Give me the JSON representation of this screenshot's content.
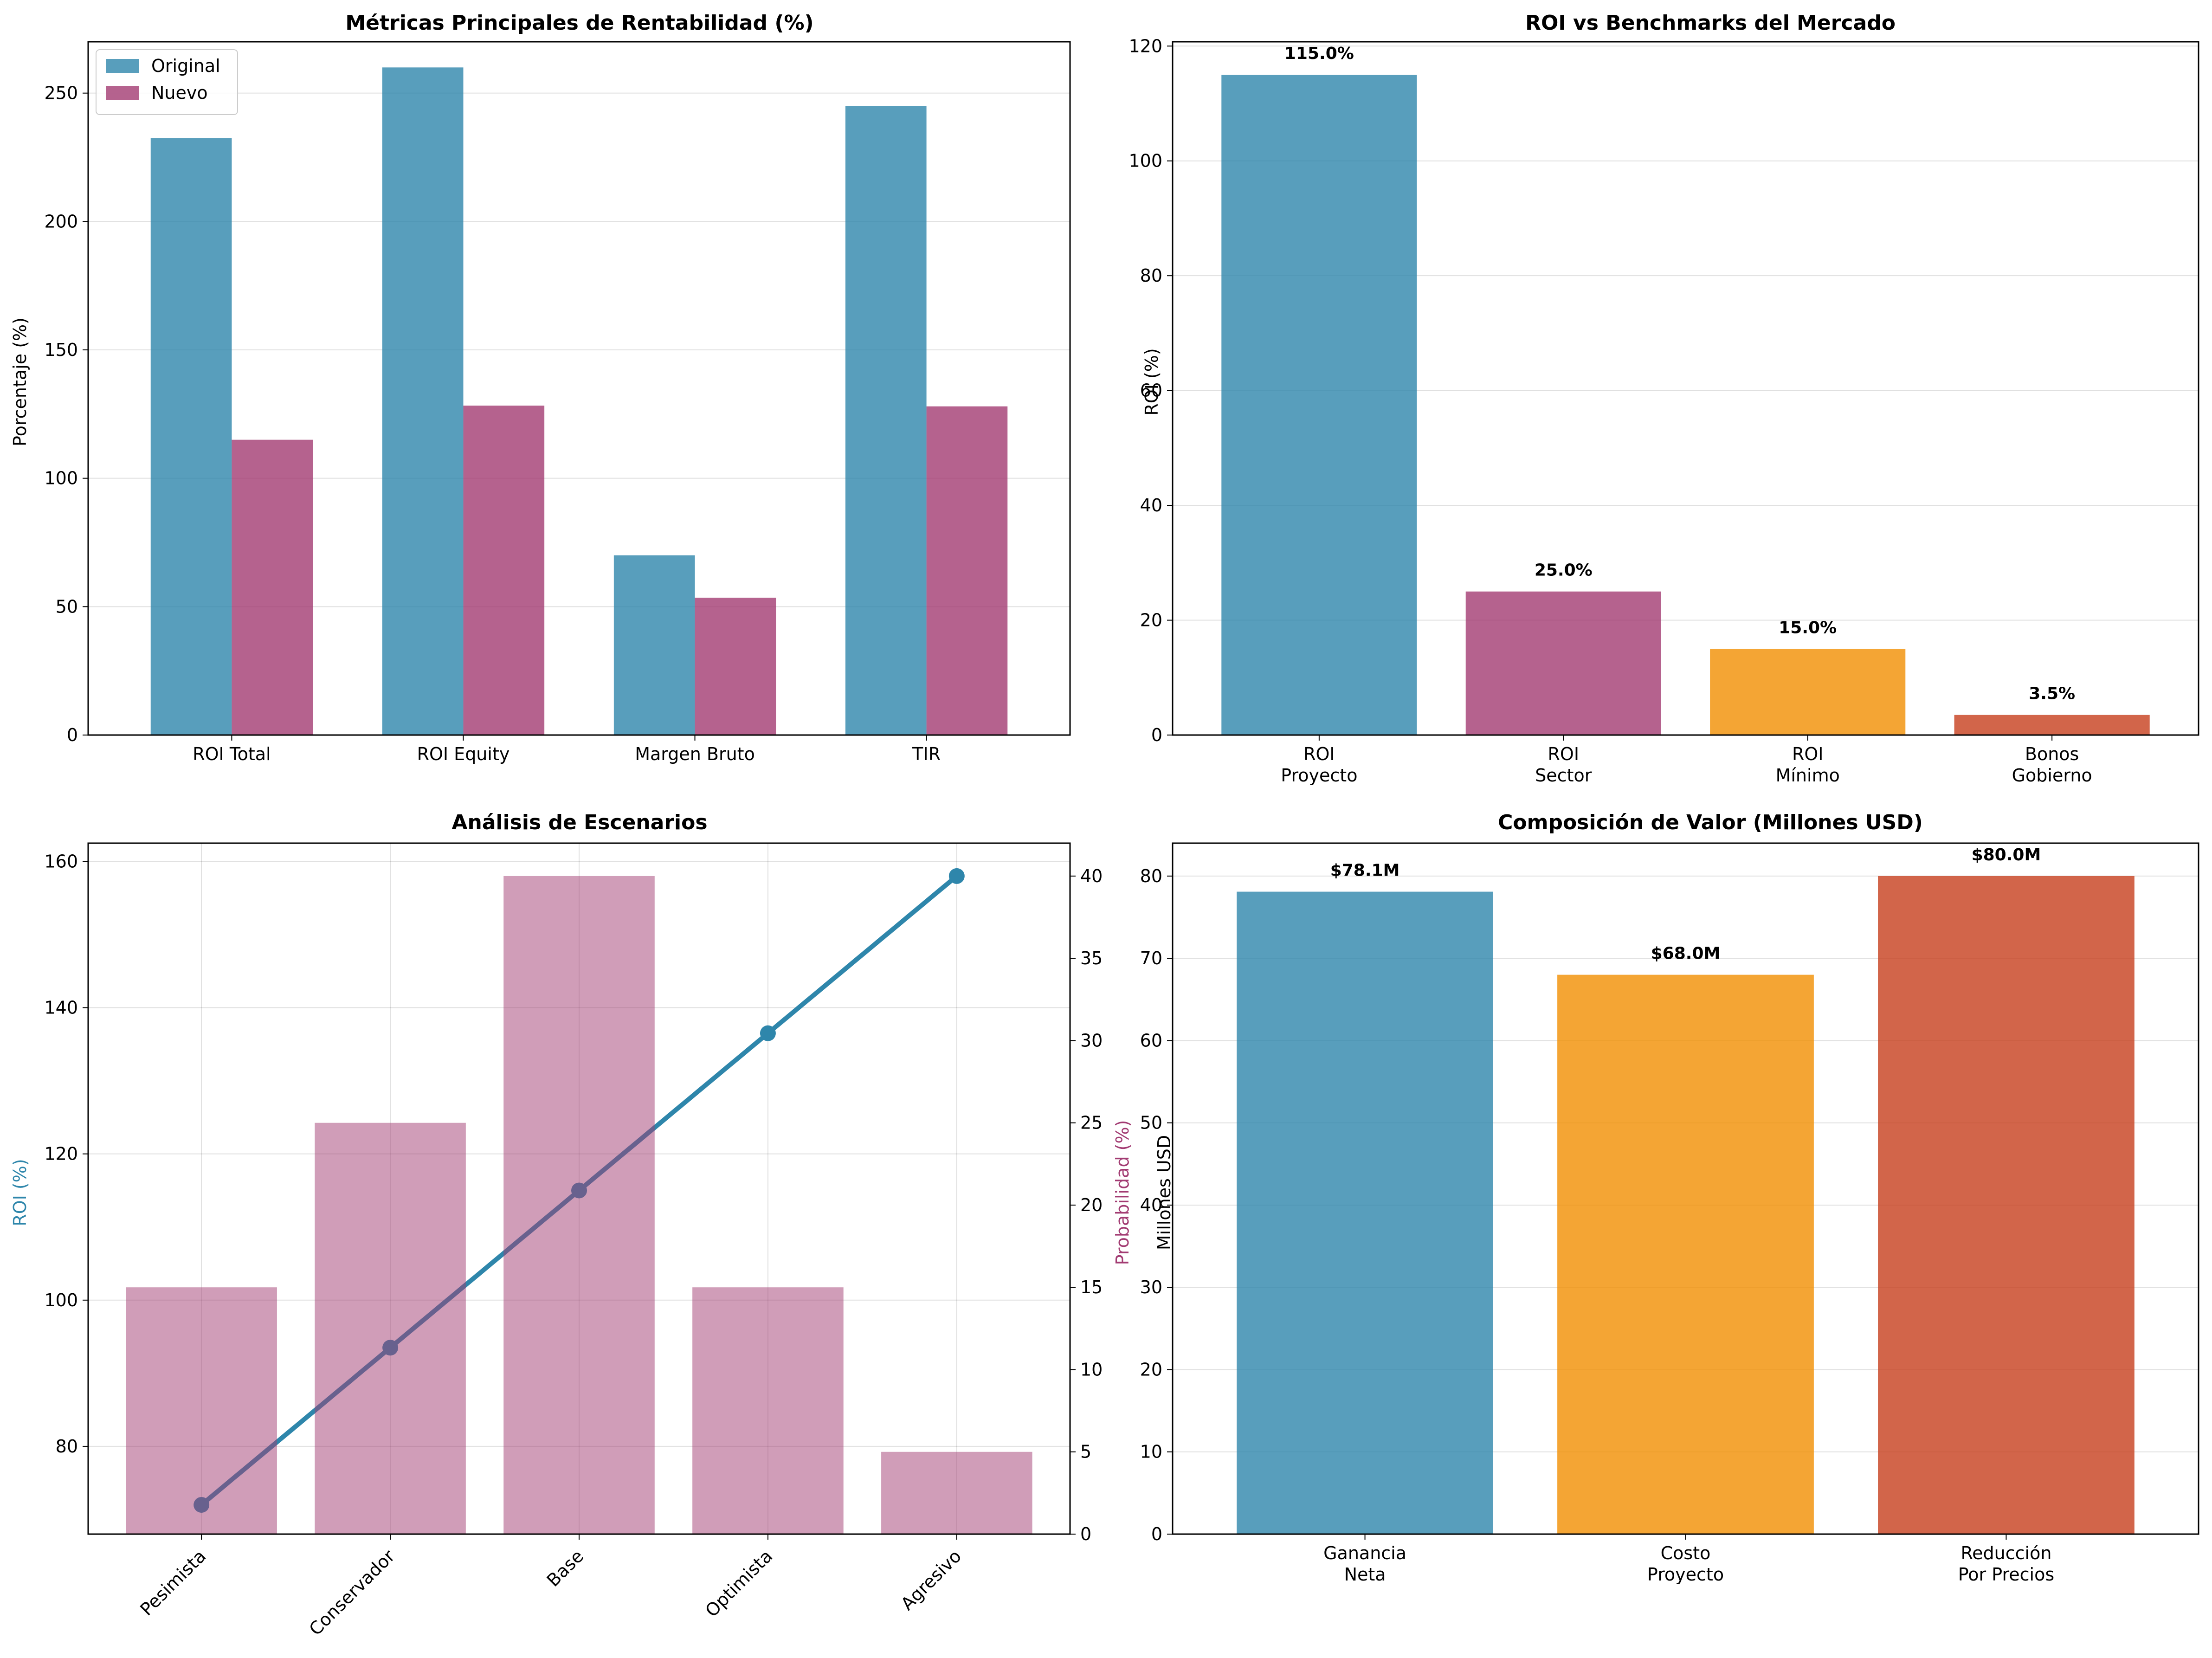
{
  "colors": {
    "blue": "#2E86AB",
    "purple": "#A23B72",
    "orange": "#F18F01",
    "red": "#C73E1D"
  },
  "chart_data": [
    {
      "id": "metricas",
      "type": "bar",
      "title": "Métricas Principales de Rentabilidad (%)",
      "xlabel": "",
      "ylabel": "Porcentaje (%)",
      "categories": [
        "ROI Total",
        "ROI Equity",
        "Margen Bruto",
        "TIR"
      ],
      "series": [
        {
          "name": "Original",
          "values": [
            232.5,
            260.0,
            70.0,
            245.0
          ],
          "color": "#2E86AB"
        },
        {
          "name": "Nuevo",
          "values": [
            115.0,
            128.3,
            53.5,
            128.0
          ],
          "color": "#A23B72"
        }
      ],
      "ylim": [
        0,
        270
      ],
      "yticks": [
        "0",
        "50",
        "100",
        "150",
        "200",
        "250"
      ],
      "legend": "top-left",
      "grid": "y"
    },
    {
      "id": "benchmarks",
      "type": "bar",
      "title": "ROI vs Benchmarks del Mercado",
      "xlabel": "",
      "ylabel": "ROI (%)",
      "categories": [
        [
          "ROI",
          "Proyecto"
        ],
        [
          "ROI",
          "Sector"
        ],
        [
          "ROI",
          "Mínimo"
        ],
        [
          "Bonos",
          "Gobierno"
        ]
      ],
      "values": [
        115.0,
        25.0,
        15.0,
        3.5
      ],
      "value_labels": [
        "115.0%",
        "25.0%",
        "15.0%",
        "3.5%"
      ],
      "colors": [
        "#2E86AB",
        "#A23B72",
        "#F18F01",
        "#C73E1D"
      ],
      "ylim": [
        0,
        120.75
      ],
      "yticks": [
        "0",
        "20",
        "40",
        "60",
        "80",
        "100",
        "120"
      ],
      "grid": "y"
    },
    {
      "id": "escenarios",
      "type": "bar+line",
      "title": "Análisis de Escenarios",
      "xlabel": "",
      "ylabel_left": "ROI (%)",
      "ylabel_right": "Probabilidad (%)",
      "categories": [
        "Pesimista",
        "Conservador",
        "Base",
        "Optimista",
        "Agresivo"
      ],
      "roi_values": [
        72.0,
        93.5,
        115.0,
        136.5,
        158.0
      ],
      "probability_values": [
        15,
        25,
        40,
        15,
        5
      ],
      "ylim_left": [
        68,
        162.5
      ],
      "ylim_right": [
        0,
        42
      ],
      "yticks_left": [
        "80",
        "100",
        "120",
        "140",
        "160"
      ],
      "yticks_right": [
        "0",
        "5",
        "10",
        "15",
        "20",
        "25",
        "30",
        "35",
        "40"
      ],
      "line_color": "#2E86AB",
      "bar_color": "#A23B72",
      "grid": "both"
    },
    {
      "id": "composicion",
      "type": "bar",
      "title": "Composición de Valor (Millones USD)",
      "xlabel": "",
      "ylabel": "Millones USD",
      "categories": [
        [
          "Ganancia",
          "Neta"
        ],
        [
          "Costo",
          "Proyecto"
        ],
        [
          "Reducción",
          "Por Precios"
        ]
      ],
      "values": [
        78.1,
        68.0,
        80.0
      ],
      "value_labels": [
        "$78.1M",
        "$68.0M",
        "$80.0M"
      ],
      "colors": [
        "#2E86AB",
        "#F18F01",
        "#C73E1D"
      ],
      "ylim": [
        0,
        84
      ],
      "yticks": [
        "0",
        "10",
        "20",
        "30",
        "40",
        "50",
        "60",
        "70",
        "80"
      ],
      "grid": "y"
    }
  ]
}
